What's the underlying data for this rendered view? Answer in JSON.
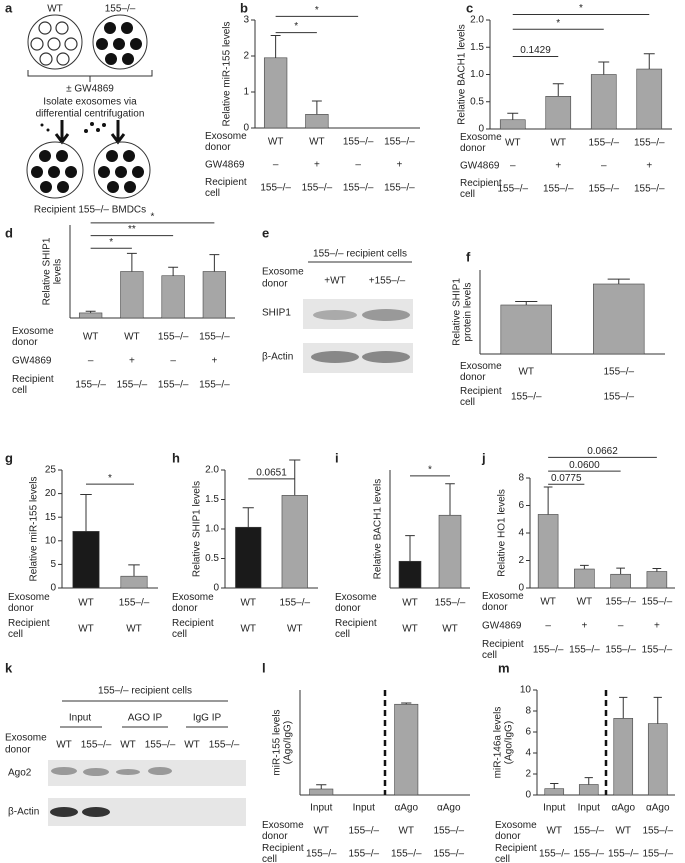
{
  "chart_data": [
    {
      "panel": "b",
      "type": "bar",
      "ylabel": [
        "Relative miR-155 levels"
      ],
      "categories": [
        "WT",
        "WT",
        "155–/–",
        "155–/–"
      ],
      "category_label": [
        "Exosome",
        "donor"
      ],
      "rows": [
        {
          "label": [
            "GW4869"
          ],
          "values": [
            "–",
            "+",
            "–",
            "+"
          ]
        },
        {
          "label": [
            "Recipient",
            "cell"
          ],
          "values": [
            "155–/–",
            "155–/–",
            "155–/–",
            "155–/–"
          ]
        }
      ],
      "values": [
        1.95,
        0.38,
        0,
        0
      ],
      "errors": [
        0.62,
        0.37,
        0,
        0
      ],
      "color": "#a6a6a6",
      "ylim": [
        0,
        3
      ],
      "yticks": [
        0,
        1,
        2,
        3
      ],
      "brackets": [
        {
          "from": 0,
          "to": 1,
          "y": 2.65,
          "label": "*"
        },
        {
          "from": 0,
          "to": 2,
          "y": 3.1,
          "label": "*"
        }
      ]
    },
    {
      "panel": "c",
      "type": "bar",
      "ylabel": [
        "Relative BACH1 levels"
      ],
      "categories": [
        "WT",
        "WT",
        "155–/–",
        "155–/–"
      ],
      "category_label": [
        "Exosome",
        "donor"
      ],
      "rows": [
        {
          "label": [
            "GW4869"
          ],
          "values": [
            "–",
            "+",
            "–",
            "+"
          ]
        },
        {
          "label": [
            "Recipient",
            "cell"
          ],
          "values": [
            "155–/–",
            "155–/–",
            "155–/–",
            "155–/–"
          ]
        }
      ],
      "values": [
        0.17,
        0.6,
        1.0,
        1.1
      ],
      "errors": [
        0.12,
        0.23,
        0.23,
        0.28
      ],
      "color": "#a6a6a6",
      "ylim": [
        0,
        2
      ],
      "yticks": [
        0,
        0.5,
        {
          "value": 1,
          "label": "1.0"
        },
        1.5,
        {
          "value": 2,
          "label": "2.0"
        }
      ],
      "brackets": [
        {
          "from": 0,
          "to": 1,
          "y": 1.33,
          "label": "0.1429"
        },
        {
          "from": 0,
          "to": 2,
          "y": 1.83,
          "label": "*"
        },
        {
          "from": 0,
          "to": 3,
          "y": 2.1,
          "label": "*"
        }
      ]
    },
    {
      "panel": "d",
      "type": "bar",
      "ylabel": [
        "Relative SHIP1",
        "levels"
      ],
      "categories": [
        "WT",
        "WT",
        "155–/–",
        "155–/–"
      ],
      "category_label": [
        "Exosome",
        "donor"
      ],
      "rows": [
        {
          "label": [
            "GW4869"
          ],
          "values": [
            "–",
            "+",
            "–",
            "+"
          ]
        },
        {
          "label": [
            "Recipient",
            "cell"
          ],
          "values": [
            "155–/–",
            "155–/–",
            "155–/–",
            "155–/–"
          ]
        }
      ],
      "values": [
        0.12,
        1.1,
        1.0,
        1.1
      ],
      "errors": [
        0.04,
        0.43,
        0.2,
        0.4
      ],
      "color": "#a6a6a6",
      "ylim": [
        0,
        2.2
      ],
      "brackets": [
        {
          "from": 0,
          "to": 1,
          "y": 1.65,
          "label": "*"
        },
        {
          "from": 0,
          "to": 2,
          "y": 1.95,
          "label": "**"
        },
        {
          "from": 0,
          "to": 3,
          "y": 2.25,
          "label": "*"
        }
      ]
    },
    {
      "panel": "f",
      "type": "bar",
      "ylabel": [
        "Relative SHIP1",
        "protein levels"
      ],
      "categories": [
        "WT",
        "155–/–"
      ],
      "category_label": [
        "Exosome",
        "donor"
      ],
      "rows": [
        {
          "label": [
            "Recipient",
            "cell"
          ],
          "values": [
            "155–/–",
            "155–/–"
          ]
        }
      ],
      "values": [
        0.7,
        1.0
      ],
      "errors": [
        0.05,
        0.07
      ],
      "color": "#a6a6a6",
      "ylim": [
        0,
        1.2
      ]
    },
    {
      "panel": "g",
      "type": "bar",
      "ylabel": [
        "Relative miR-155 levels"
      ],
      "categories": [
        "WT",
        "155–/–"
      ],
      "category_label": [
        "Exosome",
        "donor"
      ],
      "rows": [
        {
          "label": [
            "Recipient",
            "cell"
          ],
          "values": [
            "WT",
            "WT"
          ]
        }
      ],
      "values": [
        12,
        2.5
      ],
      "errors": [
        7.8,
        2.4
      ],
      "colors": [
        "#1a1a1a",
        "#a6a6a6"
      ],
      "ylim": [
        0,
        25
      ],
      "yticks": [
        0,
        5,
        10,
        15,
        20,
        25
      ],
      "brackets": [
        {
          "from": 0,
          "to": 1,
          "y": 22,
          "label": "*"
        }
      ]
    },
    {
      "panel": "h",
      "type": "bar",
      "ylabel": [
        "Relative SHIP1 levels"
      ],
      "categories": [
        "WT",
        "155–/–"
      ],
      "category_label": [
        "Exosome",
        "donor"
      ],
      "rows": [
        {
          "label": [
            "Recipient",
            "cell"
          ],
          "values": [
            "WT",
            "WT"
          ]
        }
      ],
      "values": [
        1.03,
        1.57
      ],
      "errors": [
        0.33,
        0.6
      ],
      "colors": [
        "#1a1a1a",
        "#a6a6a6"
      ],
      "ylim": [
        0,
        2
      ],
      "yticks": [
        0,
        0.5,
        {
          "value": 1,
          "label": "1.0"
        },
        1.5,
        {
          "value": 2,
          "label": "2.0"
        }
      ],
      "brackets": [
        {
          "from": 0,
          "to": 1,
          "y": 1.85,
          "label": "0.0651"
        }
      ]
    },
    {
      "panel": "i",
      "type": "bar",
      "ylabel": [
        "Relative BACH1 levels"
      ],
      "categories": [
        "WT",
        "155–/–"
      ],
      "category_label": [
        "Exosome",
        "donor"
      ],
      "rows": [
        {
          "label": [
            "Recipient",
            "cell"
          ],
          "values": [
            "WT",
            "WT"
          ]
        }
      ],
      "values": [
        0.68,
        1.85
      ],
      "errors": [
        0.65,
        0.8
      ],
      "colors": [
        "#1a1a1a",
        "#a6a6a6"
      ],
      "ylim": [
        0,
        3
      ],
      "brackets": [
        {
          "from": 0,
          "to": 1,
          "y": 2.85,
          "label": "*"
        }
      ]
    },
    {
      "panel": "j",
      "type": "bar",
      "ylabel": [
        "Relative HO1 levels"
      ],
      "categories": [
        "WT",
        "WT",
        "155–/–",
        "155–/–"
      ],
      "category_label": [
        "Exosome",
        "donor"
      ],
      "rows": [
        {
          "label": [
            "GW4869"
          ],
          "values": [
            "–",
            "+",
            "–",
            "+"
          ]
        },
        {
          "label": [
            "Recipient",
            "cell"
          ],
          "values": [
            "155–/–",
            "155–/–",
            "155–/–",
            "155–/–"
          ]
        }
      ],
      "values": [
        5.35,
        1.38,
        1.0,
        1.2
      ],
      "errors": [
        2.0,
        0.27,
        0.45,
        0.22
      ],
      "color": "#a6a6a6",
      "ylim": [
        0,
        8
      ],
      "yticks": [
        0,
        2,
        4,
        6,
        8
      ],
      "brackets": [
        {
          "from": 0,
          "to": 1,
          "y": 7.55,
          "label": "0.0775"
        },
        {
          "from": 0,
          "to": 2,
          "y": 8.5,
          "label": "0.0600"
        },
        {
          "from": 0,
          "to": 3,
          "y": 9.5,
          "label": "0.0662"
        }
      ]
    },
    {
      "panel": "l",
      "type": "bar",
      "ylabel": [
        "miR-155 levels",
        "(Ago/IgG)"
      ],
      "categories": [
        "Input",
        "Input",
        "αAgo",
        "αAgo"
      ],
      "rows": [
        {
          "label": [
            "Exosome",
            "donor"
          ],
          "values": [
            "WT",
            "155–/–",
            "WT",
            "155–/–"
          ]
        },
        {
          "label": [
            "Recipient",
            "cell"
          ],
          "values": [
            "155–/–",
            "155–/–",
            "155–/–",
            "155–/–"
          ]
        }
      ],
      "values": [
        0.4,
        0,
        6.05,
        0
      ],
      "errors": [
        0.28,
        0,
        0.08,
        0
      ],
      "color": "#a6a6a6",
      "ylim": [
        0,
        7
      ]
    },
    {
      "panel": "m",
      "type": "bar",
      "ylabel": [
        "miR-146a levels",
        "(Ago/IgG)"
      ],
      "categories": [
        "Input",
        "Input",
        "αAgo",
        "αAgo"
      ],
      "rows": [
        {
          "label": [
            "Exosome",
            "donor"
          ],
          "values": [
            "WT",
            "155–/–",
            "WT",
            "155–/–"
          ]
        },
        {
          "label": [
            "Recipient",
            "cell"
          ],
          "values": [
            "155–/–",
            "155–/–",
            "155–/–",
            "155–/–"
          ]
        }
      ],
      "values": [
        0.6,
        1.0,
        7.3,
        6.8
      ],
      "errors": [
        0.5,
        0.65,
        2.0,
        2.5
      ],
      "color": "#a6a6a6",
      "ylim": [
        0,
        10
      ],
      "yticks": [
        0,
        2,
        4,
        6,
        8,
        10
      ]
    }
  ],
  "panels": {
    "a": {
      "panel": "a",
      "groups": [
        "WT",
        "155–/–"
      ],
      "treatment": "± GW4869",
      "steps": [
        "Isolate exosomes via",
        "differential centrifugation"
      ],
      "result": "Recipient 155–/– BMDCs"
    },
    "e": {
      "panel": "e",
      "header": "155–/– recipient cells",
      "donor_label": [
        "Exosome",
        "donor"
      ],
      "lanes": [
        "+WT",
        "+155–/–"
      ],
      "bands": [
        "SHIP1",
        "β-Actin"
      ]
    },
    "k": {
      "panel": "k",
      "header": "155–/– recipient cells",
      "groups": [
        "Input",
        "AGO IP",
        "IgG IP"
      ],
      "donor_label": [
        "Exosome",
        "donor"
      ],
      "lanes": [
        "WT",
        "155–/–",
        "WT",
        "155–/–",
        "WT",
        "155–/–"
      ],
      "bands": [
        "Ago2",
        "β-Actin"
      ]
    }
  }
}
